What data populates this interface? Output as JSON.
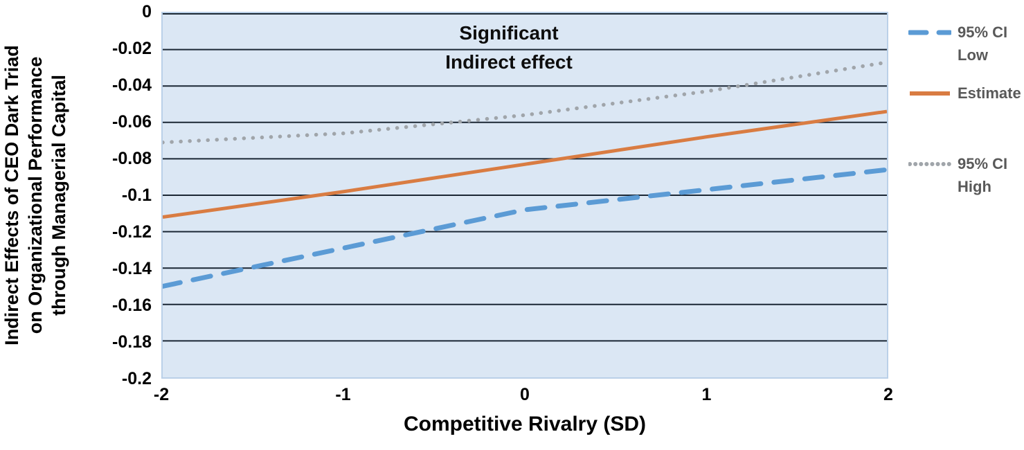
{
  "figure": {
    "background": "#ffffff",
    "plot_background": "#dbe7f4",
    "gridline_color": "#1b2734",
    "axis_text_color": "#000000",
    "legend_text_color": "#595959"
  },
  "axes": {
    "y": {
      "title_lines": [
        "Indirect Effects of CEO Dark Triad",
        "on Organizational Performance",
        "through Managerial Capital"
      ],
      "tick_labels": [
        "0",
        "-0.02",
        "-0.04",
        "-0.06",
        "-0.08",
        "-0.1",
        "-0.12",
        "-0.14",
        "-0.16",
        "-0.18",
        "-0.2"
      ],
      "tick_values": [
        0,
        -0.02,
        -0.04,
        -0.06,
        -0.08,
        -0.1,
        -0.12,
        -0.14,
        -0.16,
        -0.18,
        -0.2
      ]
    },
    "x": {
      "title": "Competitive Rivalry (SD)",
      "tick_labels": [
        "-2",
        "-1",
        "0",
        "1",
        "2"
      ],
      "tick_values": [
        -2,
        -1,
        0,
        1,
        2
      ]
    }
  },
  "annotation": {
    "lines": [
      "Significant",
      "Indirect effect"
    ]
  },
  "legend": {
    "items": [
      {
        "lines": {
          "0": "95% CI",
          "1": "Low"
        },
        "series": "95% CI Low"
      },
      {
        "lines": {
          "0": "Estimate",
          "1": ""
        },
        "series": "Estimate"
      },
      {
        "lines": {
          "0": "95% CI",
          "1": "High"
        },
        "series": "95% CI High"
      }
    ]
  },
  "chart_data": {
    "type": "line",
    "title": "",
    "xlabel": "Competitive Rivalry (SD)",
    "ylabel": "Indirect Effects of CEO Dark Triad on Organizational Performance through Managerial Capital",
    "x": [
      -2,
      -1,
      0,
      1,
      2
    ],
    "series": [
      {
        "name": "95% CI Low",
        "style": "dashed",
        "color": "#5b9bd5",
        "width": 7,
        "values": [
          -0.15,
          -0.129,
          -0.108,
          -0.097,
          -0.086
        ]
      },
      {
        "name": "Estimate",
        "style": "solid",
        "color": "#d97c42",
        "width": 5,
        "values": [
          -0.112,
          -0.098,
          -0.083,
          -0.068,
          -0.054
        ]
      },
      {
        "name": "95% CI High",
        "style": "dotted",
        "color": "#a0a5aa",
        "width": 5.5,
        "values": [
          -0.071,
          -0.066,
          -0.056,
          -0.043,
          -0.027
        ]
      }
    ],
    "xlim": [
      -2,
      2
    ],
    "ylim": [
      -0.2,
      0
    ],
    "grid": "horizontal-only",
    "legend_position": "right",
    "plot_annotation": "Significant Indirect effect"
  }
}
